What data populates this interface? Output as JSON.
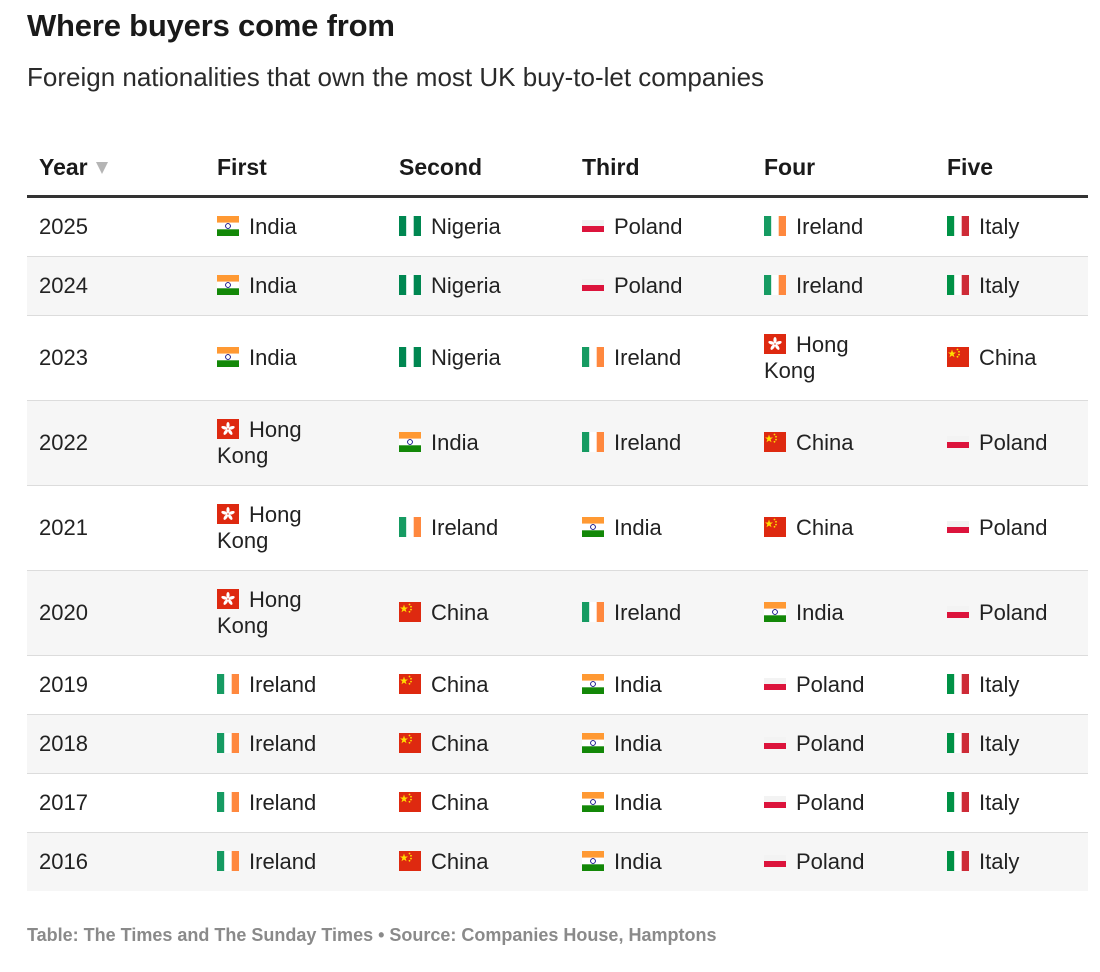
{
  "chart_data": {
    "type": "table",
    "title": "Where buyers come from",
    "subtitle": "Foreign nationalities that own the most UK buy-to-let companies",
    "columns": [
      "Year",
      "First",
      "Second",
      "Third",
      "Four",
      "Five"
    ],
    "sorted_by": "Year",
    "sort_direction": "descending",
    "rows": [
      {
        "year": "2025",
        "ranks": [
          "India",
          "Nigeria",
          "Poland",
          "Ireland",
          "Italy"
        ]
      },
      {
        "year": "2024",
        "ranks": [
          "India",
          "Nigeria",
          "Poland",
          "Ireland",
          "Italy"
        ]
      },
      {
        "year": "2023",
        "ranks": [
          "India",
          "Nigeria",
          "Ireland",
          "Hong Kong",
          "China"
        ]
      },
      {
        "year": "2022",
        "ranks": [
          "Hong Kong",
          "India",
          "Ireland",
          "China",
          "Poland"
        ]
      },
      {
        "year": "2021",
        "ranks": [
          "Hong Kong",
          "Ireland",
          "India",
          "China",
          "Poland"
        ]
      },
      {
        "year": "2020",
        "ranks": [
          "Hong Kong",
          "China",
          "Ireland",
          "India",
          "Poland"
        ]
      },
      {
        "year": "2019",
        "ranks": [
          "Ireland",
          "China",
          "India",
          "Poland",
          "Italy"
        ]
      },
      {
        "year": "2018",
        "ranks": [
          "Ireland",
          "China",
          "India",
          "Poland",
          "Italy"
        ]
      },
      {
        "year": "2017",
        "ranks": [
          "Ireland",
          "China",
          "India",
          "Poland",
          "Italy"
        ]
      },
      {
        "year": "2016",
        "ranks": [
          "Ireland",
          "China",
          "India",
          "Poland",
          "Italy"
        ]
      }
    ],
    "source": "Table: The Times and The Sunday Times • Source: Companies House, Hamptons"
  },
  "flags": {
    "India": "india-flag-icon",
    "Nigeria": "nigeria-flag-icon",
    "Poland": "poland-flag-icon",
    "Ireland": "ireland-flag-icon",
    "Italy": "italy-flag-icon",
    "Hong Kong": "hong-kong-flag-icon",
    "China": "china-flag-icon"
  },
  "colors": {
    "header_rule": "#333333",
    "row_alt_background": "#f6f6f6",
    "source_text": "#8a8a8a"
  }
}
